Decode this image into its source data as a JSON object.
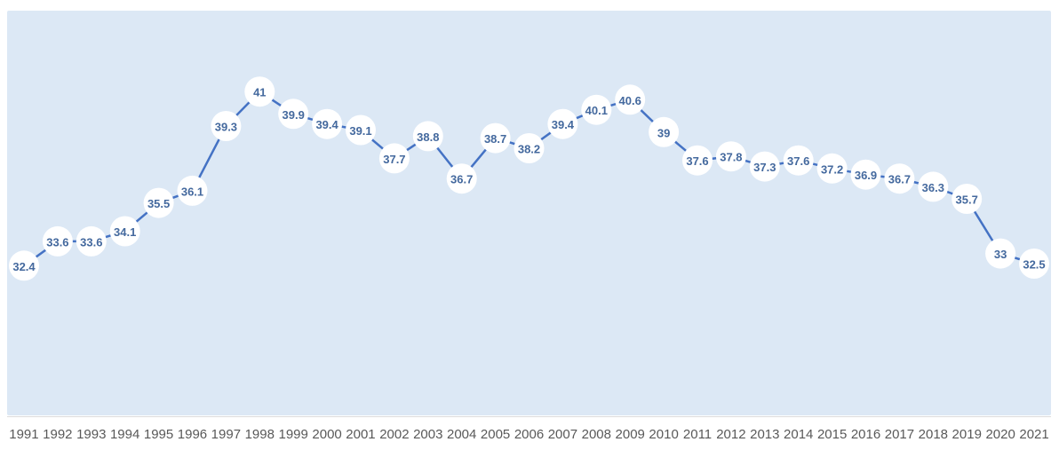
{
  "chart_data": {
    "type": "line",
    "title": "",
    "xlabel": "",
    "ylabel": "",
    "categories": [
      "1991",
      "1992",
      "1993",
      "1994",
      "1995",
      "1996",
      "1997",
      "1998",
      "1999",
      "2000",
      "2001",
      "2002",
      "2003",
      "2004",
      "2005",
      "2006",
      "2007",
      "2008",
      "2009",
      "2010",
      "2011",
      "2012",
      "2013",
      "2014",
      "2015",
      "2016",
      "2017",
      "2018",
      "2019",
      "2020",
      "2021"
    ],
    "values": [
      32.4,
      33.6,
      33.6,
      34.1,
      35.5,
      36.1,
      39.3,
      41,
      39.9,
      39.4,
      39.1,
      37.7,
      38.8,
      36.7,
      38.7,
      38.2,
      39.4,
      40.1,
      40.6,
      39,
      37.6,
      37.8,
      37.3,
      37.6,
      37.2,
      36.9,
      36.7,
      36.3,
      35.7,
      33,
      32.5
    ],
    "ylim": [
      25,
      45
    ],
    "grid": false,
    "legend": false,
    "data_labels": true,
    "marker": "circle",
    "colors": {
      "line": "#4472c4",
      "marker_fill": "#ffffff",
      "label_text": "#44699e",
      "plot_background": "#dce8f5",
      "axis_line": "#dcdcdc",
      "tick_text": "#595959",
      "page_background": "#ffffff"
    }
  }
}
